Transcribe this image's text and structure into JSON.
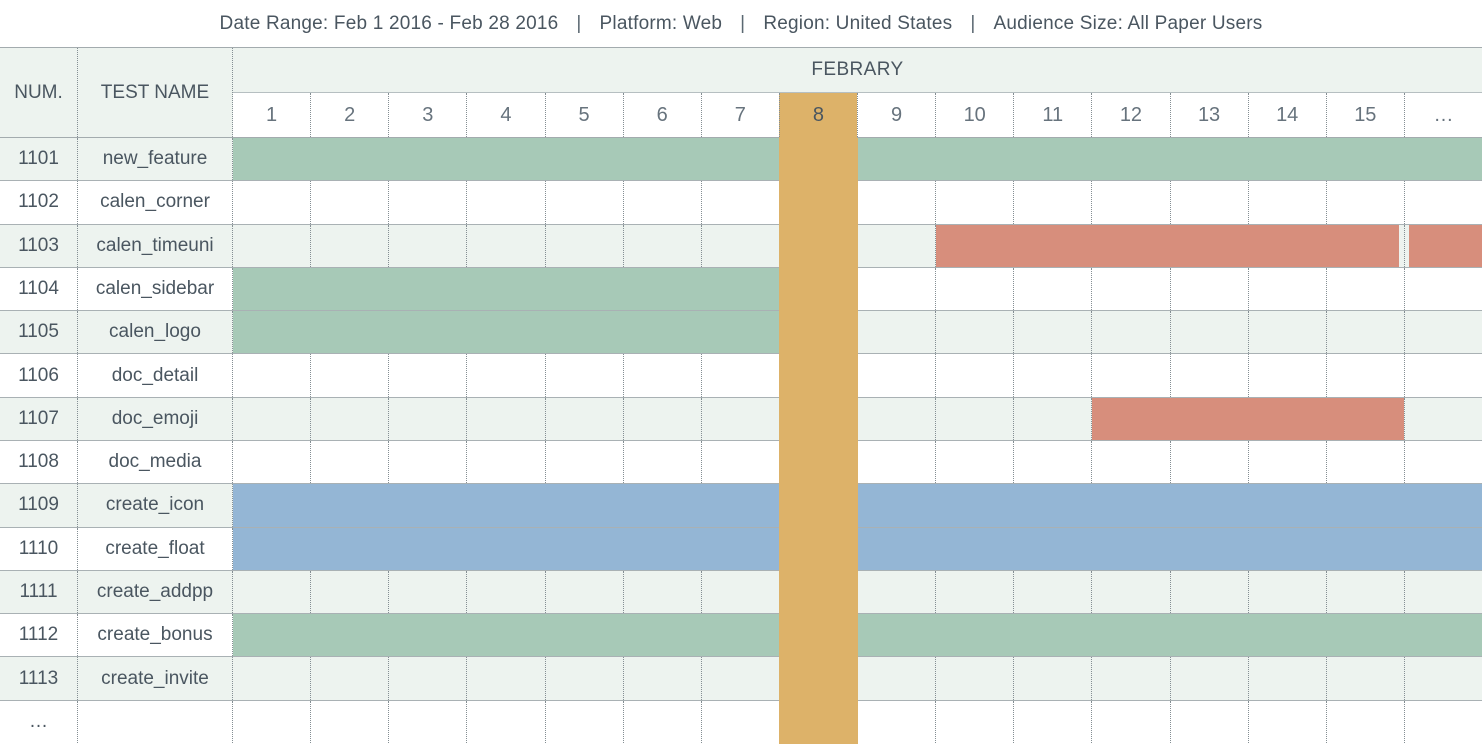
{
  "info_bar": {
    "separator": "|",
    "items": [
      {
        "text": "Date Range: Feb 1 2016 - Feb 28 2016"
      },
      {
        "text": "Platform: Web"
      },
      {
        "text": "Region: United States"
      },
      {
        "text": "Audience Size: All Paper Users"
      }
    ]
  },
  "chart_data": {
    "type": "table",
    "subtype": "gantt-schedule",
    "month_label": "FEBRARY",
    "columns": {
      "num": "NUM.",
      "test_name": "TEST NAME"
    },
    "days": [
      "1",
      "2",
      "3",
      "4",
      "5",
      "6",
      "7",
      "8",
      "9",
      "10",
      "11",
      "12",
      "13",
      "14",
      "15",
      "…"
    ],
    "highlighted_day": "8",
    "bar_colors": {
      "green": "#a7c9b7",
      "red": "#d78e7c",
      "blue": "#94b6d5",
      "orange": "#ddb269"
    },
    "rows": [
      {
        "num": "1101",
        "name": "new_feature",
        "bars": [
          {
            "start": 1,
            "end": 16,
            "color": "green"
          }
        ]
      },
      {
        "num": "1102",
        "name": "calen_corner",
        "bars": []
      },
      {
        "num": "1103",
        "name": "calen_timeuni",
        "bars": [
          {
            "start": 10,
            "end": 15,
            "color": "red"
          },
          {
            "start": 16,
            "end": 16,
            "color": "red"
          }
        ]
      },
      {
        "num": "1104",
        "name": "calen_sidebar",
        "bars": [
          {
            "start": 1,
            "end": 7,
            "color": "green"
          }
        ]
      },
      {
        "num": "1105",
        "name": "calen_logo",
        "bars": [
          {
            "start": 1,
            "end": 7,
            "color": "green"
          }
        ]
      },
      {
        "num": "1106",
        "name": "doc_detail",
        "bars": []
      },
      {
        "num": "1107",
        "name": "doc_emoji",
        "bars": [
          {
            "start": 12,
            "end": 15,
            "color": "red"
          }
        ]
      },
      {
        "num": "1108",
        "name": "doc_media",
        "bars": []
      },
      {
        "num": "1109",
        "name": "create_icon",
        "bars": [
          {
            "start": 1,
            "end": 16,
            "color": "blue"
          }
        ]
      },
      {
        "num": "1110",
        "name": "create_float",
        "bars": [
          {
            "start": 1,
            "end": 16,
            "color": "blue"
          }
        ]
      },
      {
        "num": "1111",
        "name": "create_addpp",
        "bars": []
      },
      {
        "num": "1112",
        "name": "create_bonus",
        "bars": [
          {
            "start": 1,
            "end": 16,
            "color": "green"
          }
        ]
      },
      {
        "num": "1113",
        "name": "create_invite",
        "bars": []
      },
      {
        "num": "…",
        "name": "",
        "bars": []
      }
    ]
  }
}
